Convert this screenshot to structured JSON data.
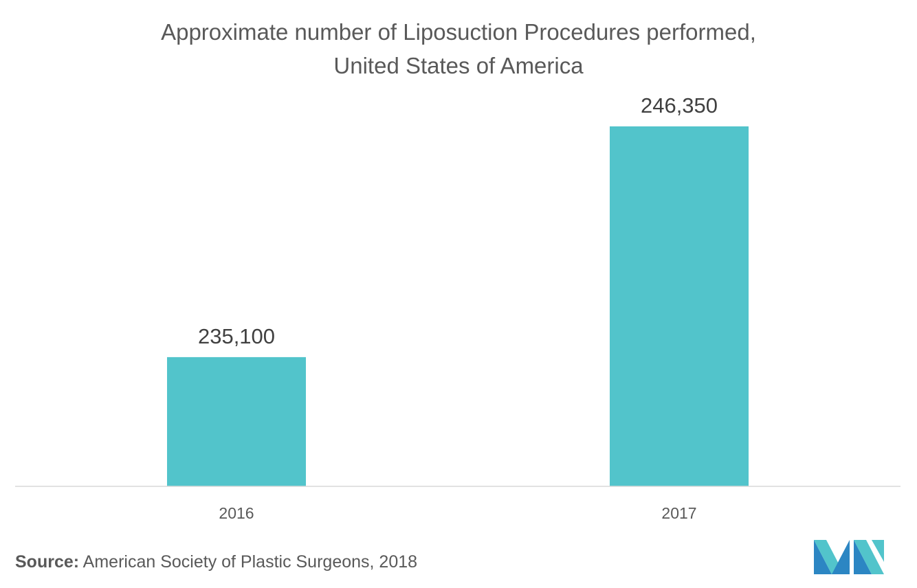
{
  "title_line1": "Approximate number of Liposuction Procedures performed,",
  "title_line2": "United States of America",
  "chart_data": {
    "type": "bar",
    "categories": [
      "2016",
      "2017"
    ],
    "values": [
      235100,
      246350
    ],
    "data_labels": [
      "235,100",
      "246,350"
    ],
    "bar_color": "#52C4CB",
    "grid": false,
    "legend": "none"
  },
  "source": {
    "label": "Source:",
    "text": "American Society of Plastic Surgeons, 2018"
  },
  "logo": {
    "icon": "mordor-logo-icon",
    "colors": [
      "#2C86C3",
      "#52C4CB"
    ]
  }
}
